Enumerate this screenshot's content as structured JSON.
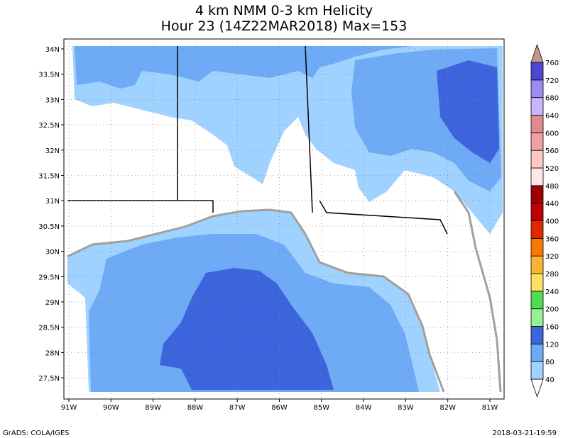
{
  "title": "4 km NMM 0-3 km Helicity",
  "subtitle": "Hour 23 (14Z22MAR2018) Max=153",
  "map": {
    "lon_labels": [
      "91W",
      "90W",
      "89W",
      "88W",
      "87W",
      "86W",
      "85W",
      "84W",
      "83W",
      "82W",
      "81W"
    ],
    "lat_labels": [
      "34N",
      "33.5N",
      "33N",
      "32.5N",
      "32N",
      "31.5N",
      "31N",
      "30.5N",
      "30N",
      "29.5N",
      "29N",
      "28.5N",
      "28N",
      "27.5N"
    ]
  },
  "colorbar": {
    "levels": [
      40,
      80,
      120,
      160,
      200,
      240,
      280,
      320,
      360,
      400,
      440,
      480,
      520,
      560,
      600,
      640,
      680,
      720,
      760
    ],
    "colors": [
      "#ffffff",
      "#a0d2ff",
      "#6eaaf5",
      "#3c64dc",
      "#96f096",
      "#50dc50",
      "#fae164",
      "#fab432",
      "#fa7800",
      "#e12800",
      "#c00000",
      "#a00000",
      "#ffe6e6",
      "#ffc8c8",
      "#f0a0a0",
      "#e08c8c",
      "#c8b4ff",
      "#9b8cf0",
      "#5046d2",
      "#c8968c"
    ]
  },
  "footer": {
    "left": "GrADS: COLA/IGES",
    "right": "2018-03-21-19:59"
  }
}
